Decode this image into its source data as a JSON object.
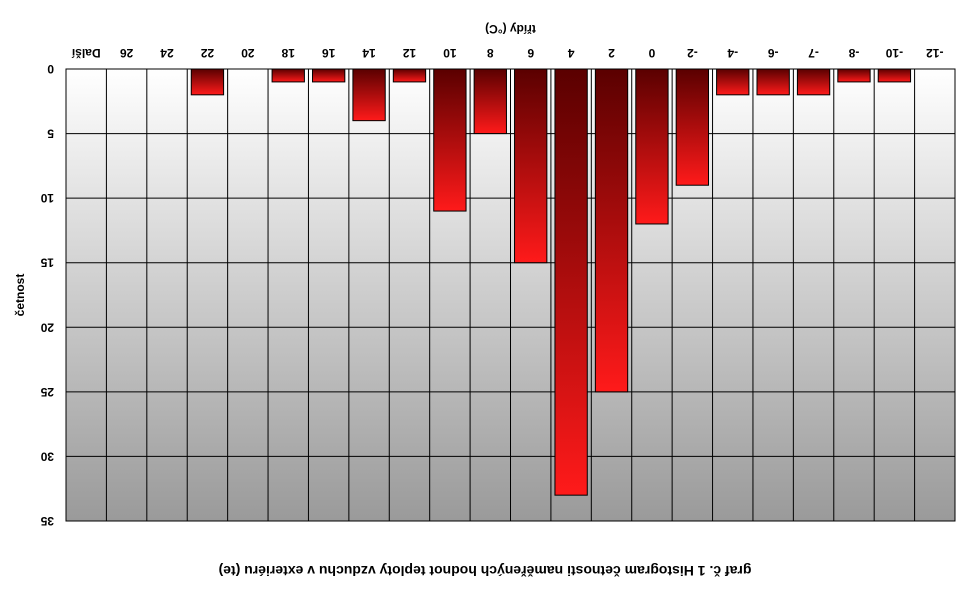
{
  "chart_data": {
    "type": "bar",
    "orientation": "rotated-180",
    "title": "graf č. 1 Histogram četnosti naměřených hodnot teploty vzduchu v exteriéru (te)",
    "xlabel": "třídy (°C)",
    "ylabel": "četnost",
    "categories": [
      "-12",
      "-10",
      "-8",
      "-7",
      "-6",
      "-4",
      "-2",
      "0",
      "2",
      "4",
      "6",
      "8",
      "10",
      "12",
      "14",
      "16",
      "18",
      "20",
      "22",
      "24",
      "26",
      "Další"
    ],
    "series": [
      {
        "values": [
          0,
          1,
          1,
          2,
          2,
          2,
          9,
          12,
          25,
          33,
          15,
          5,
          11,
          1,
          4,
          1,
          1,
          0,
          2,
          0,
          0,
          0
        ]
      }
    ],
    "ylim": [
      0,
      35
    ],
    "yticks": [
      0,
      5,
      10,
      15,
      20,
      25,
      30,
      35
    ],
    "grid": true,
    "legend": "none",
    "colors": {
      "bar_dark": "#5a0000",
      "bar_light": "#ff1a1a",
      "plot_top": "#ffffff",
      "plot_bottom": "#9a9a9a",
      "grid": "#000000"
    }
  }
}
